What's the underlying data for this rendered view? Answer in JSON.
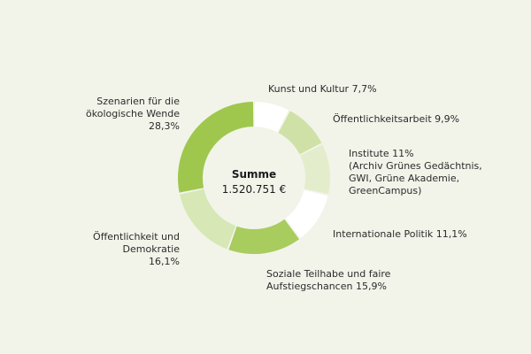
{
  "chart_data": {
    "type": "pie",
    "center": {
      "title": "Summe",
      "value": "1.520.751 €"
    },
    "slices": [
      {
        "lines": [
          "Kunst und Kultur  7,7%"
        ],
        "value": 7.7,
        "color": "#ffffff"
      },
      {
        "lines": [
          "Öffentlichkeitsarbeit  9,9%"
        ],
        "value": 9.9,
        "color": "#cfe1a6"
      },
      {
        "lines": [
          "Institute 11%",
          "(Archiv Grünes Gedächtnis,",
          "GWI, Grüne Akademie,",
          "GreenCampus)"
        ],
        "value": 11.0,
        "color": "#e3edcb"
      },
      {
        "lines": [
          "Internationale Politik  11,1%"
        ],
        "value": 11.1,
        "color": "#ffffff"
      },
      {
        "lines": [
          "Soziale Teilhabe und faire",
          "Aufstiegschancen  15,9%"
        ],
        "value": 15.9,
        "color": "#a8cc5e"
      },
      {
        "lines": [
          "Öffentlichkeit und",
          "Demokratie",
          "16,1%"
        ],
        "value": 16.1,
        "color": "#d7e7b5"
      },
      {
        "lines": [
          "Szenarien für die",
          "ökologische Wende",
          "28,3%"
        ],
        "value": 28.3,
        "color": "#9fc74e"
      }
    ]
  }
}
